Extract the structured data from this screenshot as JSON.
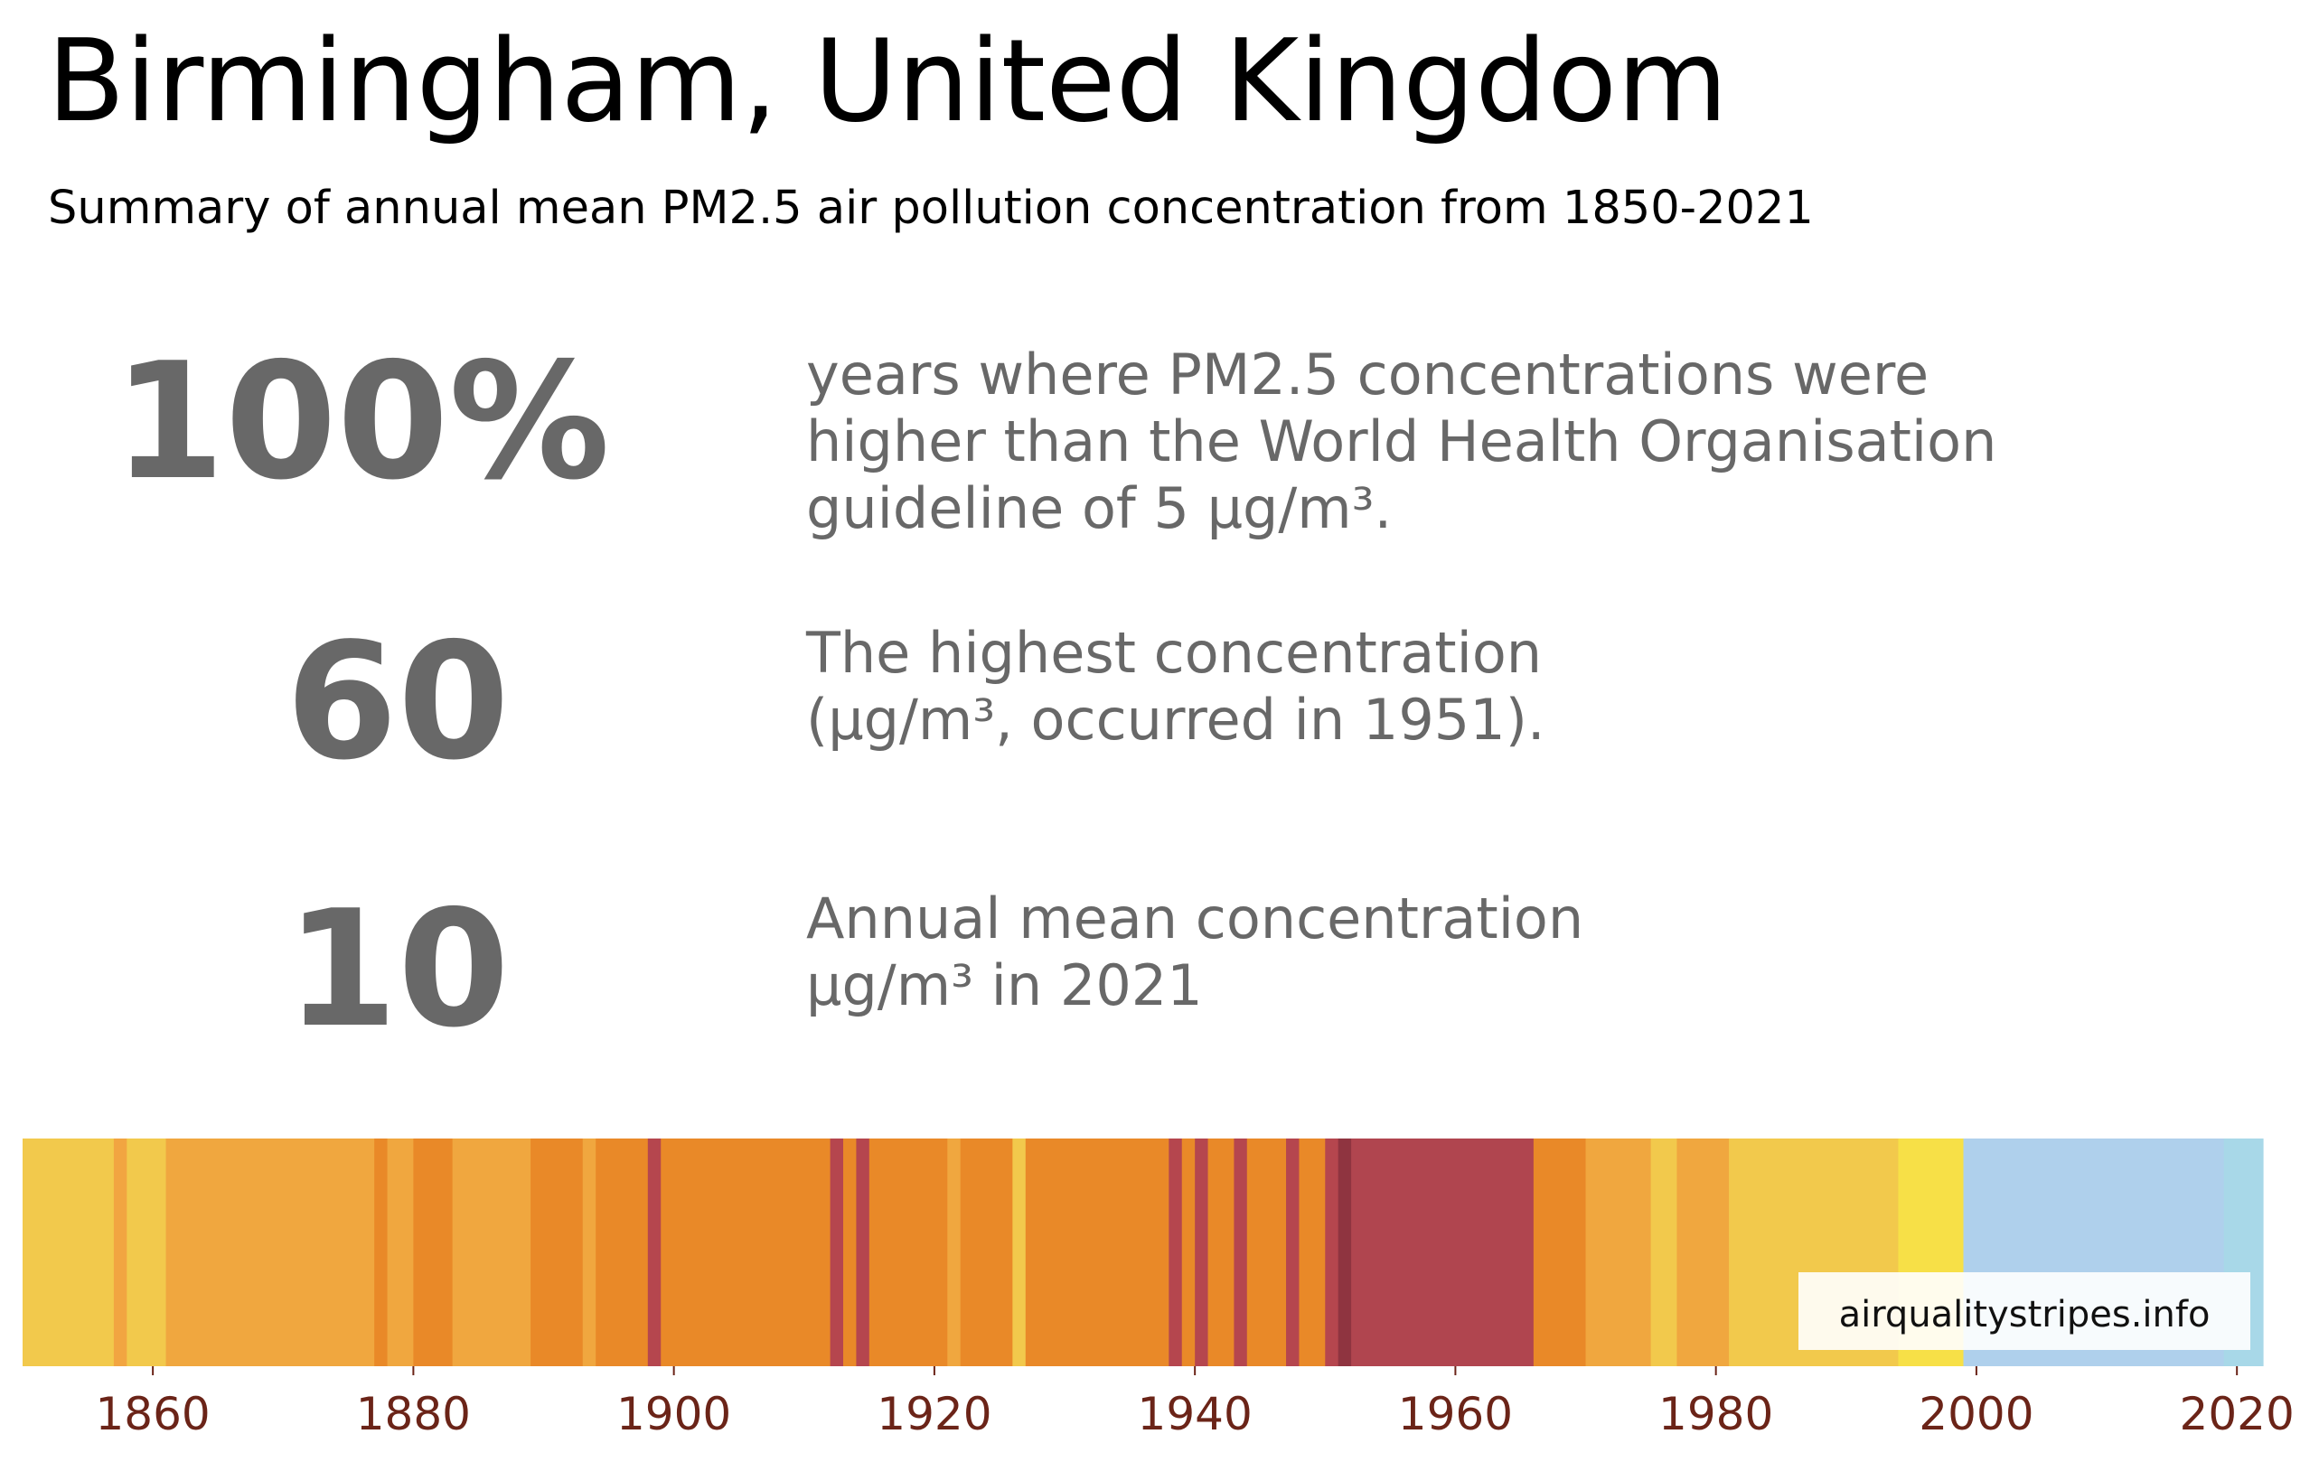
{
  "title": "Birmingham, United Kingdom",
  "subtitle": "Summary of annual mean PM2.5 air pollution concentration from 1850-2021",
  "stats": [
    {
      "value": "100%",
      "lines": [
        "years where PM2.5 concentrations were",
        "higher than the World Health Organisation",
        "guideline of 5 µg/m³."
      ]
    },
    {
      "value": "60",
      "lines": [
        "The highest concentration",
        "(µg/m³, occurred in 1951)."
      ]
    },
    {
      "value": "10",
      "lines": [
        "Annual mean concentration",
        "µg/m³ in 2021"
      ]
    }
  ],
  "chart_data": {
    "type": "heatmap",
    "description_key": "annual stripes, one per year, color indicates concentration level",
    "xlim": [
      1850,
      2022
    ],
    "x_ticks": [
      1860,
      1880,
      1900,
      1920,
      1940,
      1960,
      1980,
      2000,
      2020
    ],
    "tick_color": "#6b2418",
    "stripes": [
      {
        "start": 1850,
        "end": 1857,
        "color": "#f2c94c"
      },
      {
        "start": 1857,
        "end": 1858,
        "color": "#f2a541"
      },
      {
        "start": 1858,
        "end": 1861,
        "color": "#f2c94c"
      },
      {
        "start": 1861,
        "end": 1877,
        "color": "#f0a73f"
      },
      {
        "start": 1877,
        "end": 1878,
        "color": "#e98928"
      },
      {
        "start": 1878,
        "end": 1880,
        "color": "#f0a73f"
      },
      {
        "start": 1880,
        "end": 1883,
        "color": "#e98928"
      },
      {
        "start": 1883,
        "end": 1889,
        "color": "#f0a73f"
      },
      {
        "start": 1889,
        "end": 1893,
        "color": "#e98928"
      },
      {
        "start": 1893,
        "end": 1894,
        "color": "#f0a73f"
      },
      {
        "start": 1894,
        "end": 1898,
        "color": "#e98928"
      },
      {
        "start": 1898,
        "end": 1899,
        "color": "#b5464e"
      },
      {
        "start": 1899,
        "end": 1912,
        "color": "#e98928"
      },
      {
        "start": 1912,
        "end": 1913,
        "color": "#b5464e"
      },
      {
        "start": 1913,
        "end": 1914,
        "color": "#e98928"
      },
      {
        "start": 1914,
        "end": 1915,
        "color": "#b5464e"
      },
      {
        "start": 1915,
        "end": 1921,
        "color": "#e98928"
      },
      {
        "start": 1921,
        "end": 1922,
        "color": "#f0a73f"
      },
      {
        "start": 1922,
        "end": 1926,
        "color": "#e98928"
      },
      {
        "start": 1926,
        "end": 1927,
        "color": "#f2c94c"
      },
      {
        "start": 1927,
        "end": 1938,
        "color": "#e98928"
      },
      {
        "start": 1938,
        "end": 1939,
        "color": "#b5464e"
      },
      {
        "start": 1939,
        "end": 1940,
        "color": "#e98928"
      },
      {
        "start": 1940,
        "end": 1941,
        "color": "#b5464e"
      },
      {
        "start": 1941,
        "end": 1943,
        "color": "#e98928"
      },
      {
        "start": 1943,
        "end": 1944,
        "color": "#b5464e"
      },
      {
        "start": 1944,
        "end": 1947,
        "color": "#e98928"
      },
      {
        "start": 1947,
        "end": 1948,
        "color": "#b5464e"
      },
      {
        "start": 1948,
        "end": 1950,
        "color": "#e98928"
      },
      {
        "start": 1950,
        "end": 1951,
        "color": "#b5464e"
      },
      {
        "start": 1951,
        "end": 1952,
        "color": "#8f3440"
      },
      {
        "start": 1952,
        "end": 1966,
        "color": "#b0454f"
      },
      {
        "start": 1966,
        "end": 1970,
        "color": "#e98928"
      },
      {
        "start": 1970,
        "end": 1975,
        "color": "#f0a73f"
      },
      {
        "start": 1975,
        "end": 1977,
        "color": "#f2c94c"
      },
      {
        "start": 1977,
        "end": 1981,
        "color": "#f0a73f"
      },
      {
        "start": 1981,
        "end": 1994,
        "color": "#f2c94c"
      },
      {
        "start": 1994,
        "end": 1999,
        "color": "#f7e047"
      },
      {
        "start": 1999,
        "end": 2019,
        "color": "#afd0ec"
      },
      {
        "start": 2019,
        "end": 2022,
        "color": "#a8d8e8"
      }
    ],
    "watermark": "airqualitystripes.info"
  }
}
